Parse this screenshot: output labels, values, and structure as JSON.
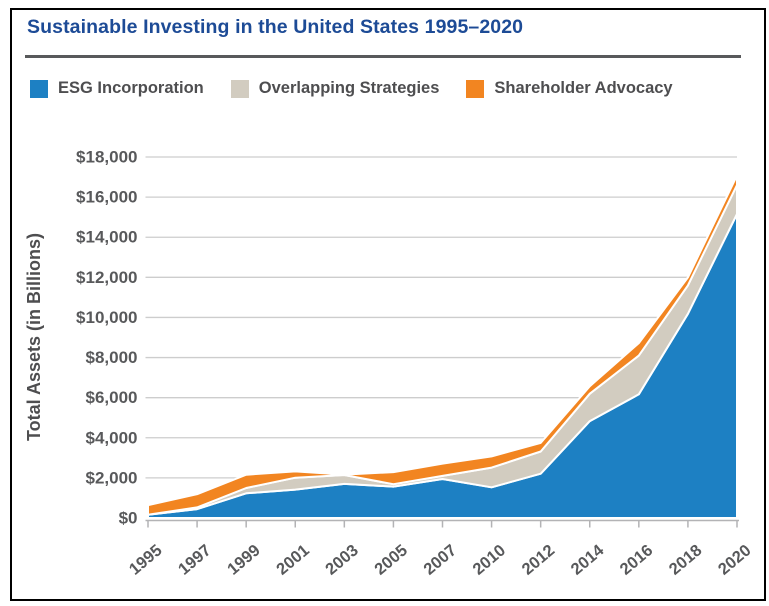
{
  "chart_data": {
    "type": "area",
    "stacked": true,
    "title": "Sustainable Investing in the United States 1995–2020",
    "ylabel": "Total Assets (in Billions)",
    "categories": [
      "1995",
      "1997",
      "1999",
      "2001",
      "2003",
      "2005",
      "2007",
      "2010",
      "2012",
      "2014",
      "2016",
      "2018",
      "2020"
    ],
    "series": [
      {
        "name": "ESG Incorporation",
        "color": "#1d80c3",
        "values": [
          162,
          445,
          1232,
          1418,
          1702,
          1568,
          1947,
          1531,
          2208,
          4830,
          6170,
          10180,
          15160
        ]
      },
      {
        "name": "Overlapping Strategies",
        "color": "#d2ccc0",
        "values": [
          5,
          84,
          265,
          592,
          441,
          117,
          151,
          981,
          1106,
          1370,
          1930,
          1420,
          1440
        ]
      },
      {
        "name": "Shareholder Advocacy",
        "color": "#f28521",
        "values": [
          472,
          656,
          662,
          313,
          21,
          605,
          613,
          557,
          430,
          372,
          623,
          395,
          481
        ]
      }
    ],
    "stack_totals": [
      639,
      1185,
      2159,
      2323,
      2164,
      2290,
      2711,
      3069,
      3744,
      6572,
      8723,
      11995,
      17081
    ],
    "ylim": [
      0,
      18000
    ],
    "ytick_step": 2000,
    "ytick_prefix": "$",
    "grid": true,
    "legend_position": "top",
    "band_separator": "white"
  },
  "colors": {
    "title": "#1d4b96",
    "divider": "#58595b",
    "legend_text": "#4e4e50",
    "tick_text": "#58595b",
    "axis_title_text": "#4e4e50",
    "gridline": "#cdcdcd",
    "axis_line": "#b3b3b5",
    "frame_border": "#000000",
    "background": "#ffffff"
  }
}
